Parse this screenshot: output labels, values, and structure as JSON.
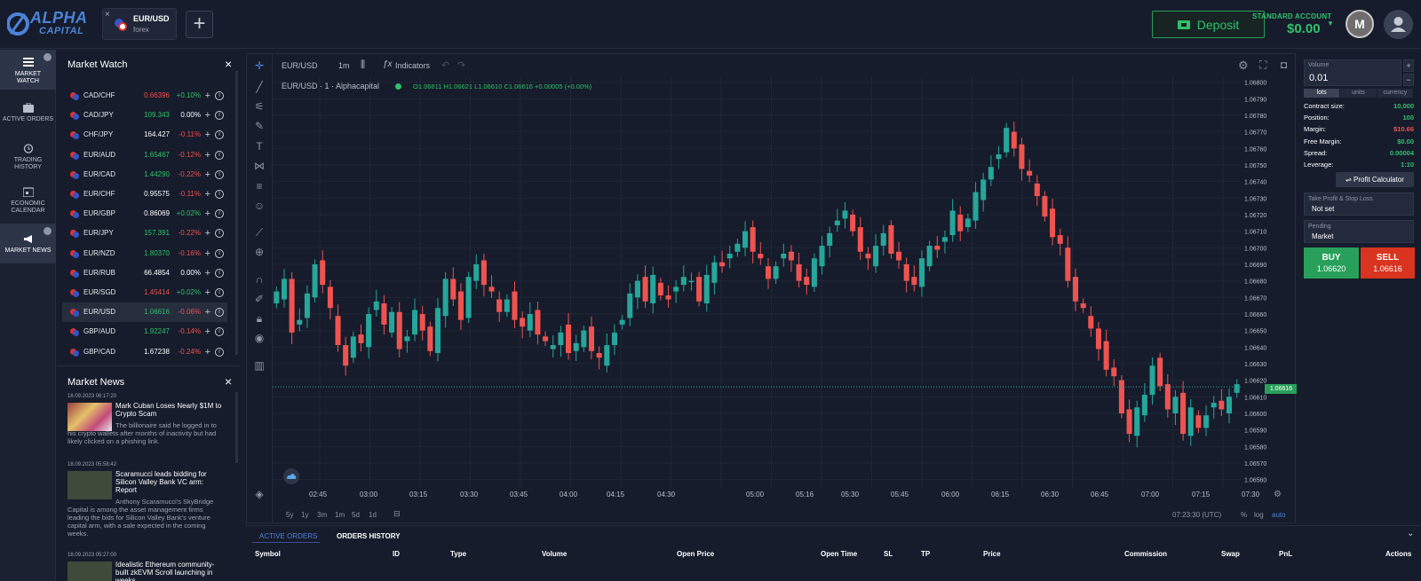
{
  "header": {
    "logo_text": "ALPHA",
    "logo_sub": "CAPITAL",
    "tab": {
      "symbol": "EUR/USD",
      "market": "forex",
      "close": "×"
    },
    "add_tab": "+",
    "deposit": "Deposit",
    "account_label": "STANDARD ACCOUNT",
    "account_balance": "$0.00",
    "medal": "M"
  },
  "nav": [
    {
      "label1": "MARKET",
      "label2": "WATCH",
      "active": true
    },
    {
      "label1": "ACTIVE ORDERS",
      "label2": ""
    },
    {
      "label1": "TRADING",
      "label2": "HISTORY"
    },
    {
      "label1": "ECONOMIC",
      "label2": "CALENDAR"
    },
    {
      "label1": "MARKET NEWS",
      "label2": "",
      "active": true
    }
  ],
  "market_watch": {
    "title": "Market Watch",
    "close": "×",
    "rows": [
      {
        "name": "CAD/CHF",
        "price": "0.66396",
        "change": "+0.10%",
        "pc": "r",
        "cc": "g"
      },
      {
        "name": "CAD/JPY",
        "price": "109.343",
        "change": "0.00%",
        "pc": "g",
        "cc": "w"
      },
      {
        "name": "CHF/JPY",
        "price": "164.427",
        "change": "-0.11%",
        "pc": "w",
        "cc": "r"
      },
      {
        "name": "EUR/AUD",
        "price": "1.65467",
        "change": "-0.12%",
        "pc": "g",
        "cc": "r"
      },
      {
        "name": "EUR/CAD",
        "price": "1.44290",
        "change": "-0.22%",
        "pc": "g",
        "cc": "r"
      },
      {
        "name": "EUR/CHF",
        "price": "0.95575",
        "change": "-0.11%",
        "pc": "w",
        "cc": "r"
      },
      {
        "name": "EUR/GBP",
        "price": "0.86069",
        "change": "+0.02%",
        "pc": "w",
        "cc": "g"
      },
      {
        "name": "EUR/JPY",
        "price": "157.391",
        "change": "-0.22%",
        "pc": "g",
        "cc": "r"
      },
      {
        "name": "EUR/NZD",
        "price": "1.80370",
        "change": "-0.16%",
        "pc": "g",
        "cc": "r"
      },
      {
        "name": "EUR/RUB",
        "price": "66.4854",
        "change": "0.00%",
        "pc": "w",
        "cc": "w"
      },
      {
        "name": "EUR/SGD",
        "price": "1.45414",
        "change": "+0.02%",
        "pc": "r",
        "cc": "g"
      },
      {
        "name": "EUR/USD",
        "price": "1.06616",
        "change": "-0.06%",
        "pc": "g",
        "cc": "r",
        "sel": true
      },
      {
        "name": "GBP/AUD",
        "price": "1.92247",
        "change": "-0.14%",
        "pc": "g",
        "cc": "r"
      },
      {
        "name": "GBP/CAD",
        "price": "1.67238",
        "change": "-0.24%",
        "pc": "w",
        "cc": "r"
      }
    ]
  },
  "market_news": {
    "title": "Market News",
    "close": "×",
    "items": [
      {
        "date": "18.09.2023 06:17:20",
        "headline": "Mark Cuban Loses Nearly $1M to Crypto Scam",
        "body": "The billionaire said he logged in to his crypto wallets after months of inactivity but had likely clicked on a phishing link."
      },
      {
        "date": "18.09.2023 05:58:42",
        "headline": "Scaramucci leads bidding for Silicon Valley Bank VC arm: Report",
        "body": "Anthony Scaramucci's SkyBridge Capital is among the asset management firms leading the bids for Silicon Valley Bank's venture capital arm, with a sale expected in the coming weeks."
      },
      {
        "date": "18.09.2023 05:27:00",
        "headline": "Idealistic Ethereum community-built zkEVM Scroll launching in weeks",
        "body": ""
      }
    ]
  },
  "chart": {
    "symbol": "EUR/USD",
    "timeframe": "1m",
    "indicators": "Indicators",
    "legend": "EUR/USD · 1 · Alphacapital",
    "ohlc": "O1.06611  H1.06621  L1.06610  C1.06616  +0.00005 (+0.00%)",
    "last": "1.06616",
    "time_readout": "07:23:30 (UTC)",
    "pct": "%",
    "log": "log",
    "auto": "auto",
    "ranges": [
      "5y",
      "1y",
      "3m",
      "1m",
      "5d",
      "1d"
    ],
    "price_labels": [
      "1.06800",
      "1.06790",
      "1.06780",
      "1.06770",
      "1.06760",
      "1.06750",
      "1.06740",
      "1.06730",
      "1.06720",
      "1.06710",
      "1.06700",
      "1.06690",
      "1.06680",
      "1.06670",
      "1.06660",
      "1.06650",
      "1.06640",
      "1.06630",
      "1.06620",
      "1.06610",
      "1.06600",
      "1.06590",
      "1.06580",
      "1.06570",
      "1.06560"
    ],
    "time_labels": [
      "02:45",
      "03:00",
      "03:15",
      "03:30",
      "03:45",
      "04:00",
      "04:15",
      "04:30",
      "05:00",
      "05:16",
      "05:30",
      "05:45",
      "06:00",
      "06:15",
      "06:30",
      "06:45",
      "07:00",
      "07:15",
      "07:30"
    ]
  },
  "trade": {
    "volume_label": "Volume",
    "volume": "0.01",
    "plus": "+",
    "minus": "−",
    "units": [
      "lots",
      "units",
      "currency"
    ],
    "stats": [
      {
        "k": "Contract size:",
        "v": "10,000",
        "c": "#32c06b"
      },
      {
        "k": "Position:",
        "v": "100",
        "c": "#32c06b"
      },
      {
        "k": "Margin:",
        "v": "$10.66",
        "c": "#f14f4f"
      },
      {
        "k": "Free Margin:",
        "v": "$0.00",
        "c": "#32c06b"
      },
      {
        "k": "Spread:",
        "v": "0.00004",
        "c": "#32c06b"
      },
      {
        "k": "Leverage:",
        "v": "1:10",
        "c": "#32c06b"
      }
    ],
    "profit_calc": "Profit Calculator",
    "tp_label": "Take Profit & Stop Loss",
    "tp_value": "Not set",
    "pending_label": "Pending",
    "pending_value": "Market",
    "buy": "BUY",
    "buy_price": "1.06620",
    "sell": "SELL",
    "sell_price": "1.06616"
  },
  "orders": {
    "tabs": [
      "ACTIVE ORDERS",
      "ORDERS HISTORY"
    ],
    "columns": [
      "Symbol",
      "ID",
      "Type",
      "Volume",
      "Open Price",
      "Open Time",
      "SL",
      "TP",
      "Price",
      "Commission",
      "Swap",
      "PnL",
      "Actions"
    ]
  },
  "chart_data": {
    "type": "candlestick",
    "ylim": [
      1.06555,
      1.06803
    ],
    "close": [
      1.0667,
      1.0668,
      1.0665,
      1.0666,
      1.0667,
      1.0669,
      1.0668,
      1.0666,
      1.0664,
      1.0663,
      1.0665,
      1.0664,
      1.0666,
      1.0667,
      1.0665,
      1.0666,
      1.0664,
      1.0665,
      1.0666,
      1.0665,
      1.0664,
      1.0666,
      1.0668,
      1.0667,
      1.0666,
      1.0668,
      1.0669,
      1.0668,
      1.0667,
      1.0666,
      1.0667,
      1.0666,
      1.0665,
      1.0666,
      1.0665,
      1.0664,
      1.0664,
      1.0665,
      1.0664,
      1.0664,
      1.0665,
      1.0664,
      1.0663,
      1.0664,
      1.0665,
      1.0666,
      1.0667,
      1.0668,
      1.0667,
      1.0668,
      1.0667,
      1.0667,
      1.0668,
      1.0668,
      1.0668,
      1.0667,
      1.0668,
      1.0669,
      1.0669,
      1.067,
      1.067,
      1.0671,
      1.067,
      1.0669,
      1.0668,
      1.0669,
      1.067,
      1.0669,
      1.0668,
      1.0668,
      1.0669,
      1.067,
      1.0671,
      1.0672,
      1.0672,
      1.0671,
      1.067,
      1.0669,
      1.067,
      1.0671,
      1.067,
      1.0669,
      1.0668,
      1.0668,
      1.0669,
      1.067,
      1.067,
      1.0671,
      1.0672,
      1.0671,
      1.0672,
      1.0673,
      1.0674,
      1.0675,
      1.0676,
      1.0677,
      1.0676,
      1.0675,
      1.0674,
      1.0673,
      1.0672,
      1.0671,
      1.067,
      1.0668,
      1.0667,
      1.0666,
      1.0665,
      1.0664,
      1.0663,
      1.0662,
      1.066,
      1.0659,
      1.066,
      1.0661,
      1.0663,
      1.0662,
      1.066,
      1.0661,
      1.0659,
      1.066,
      1.0659,
      1.066,
      1.0661,
      1.066,
      1.0661,
      1.0662
    ]
  }
}
